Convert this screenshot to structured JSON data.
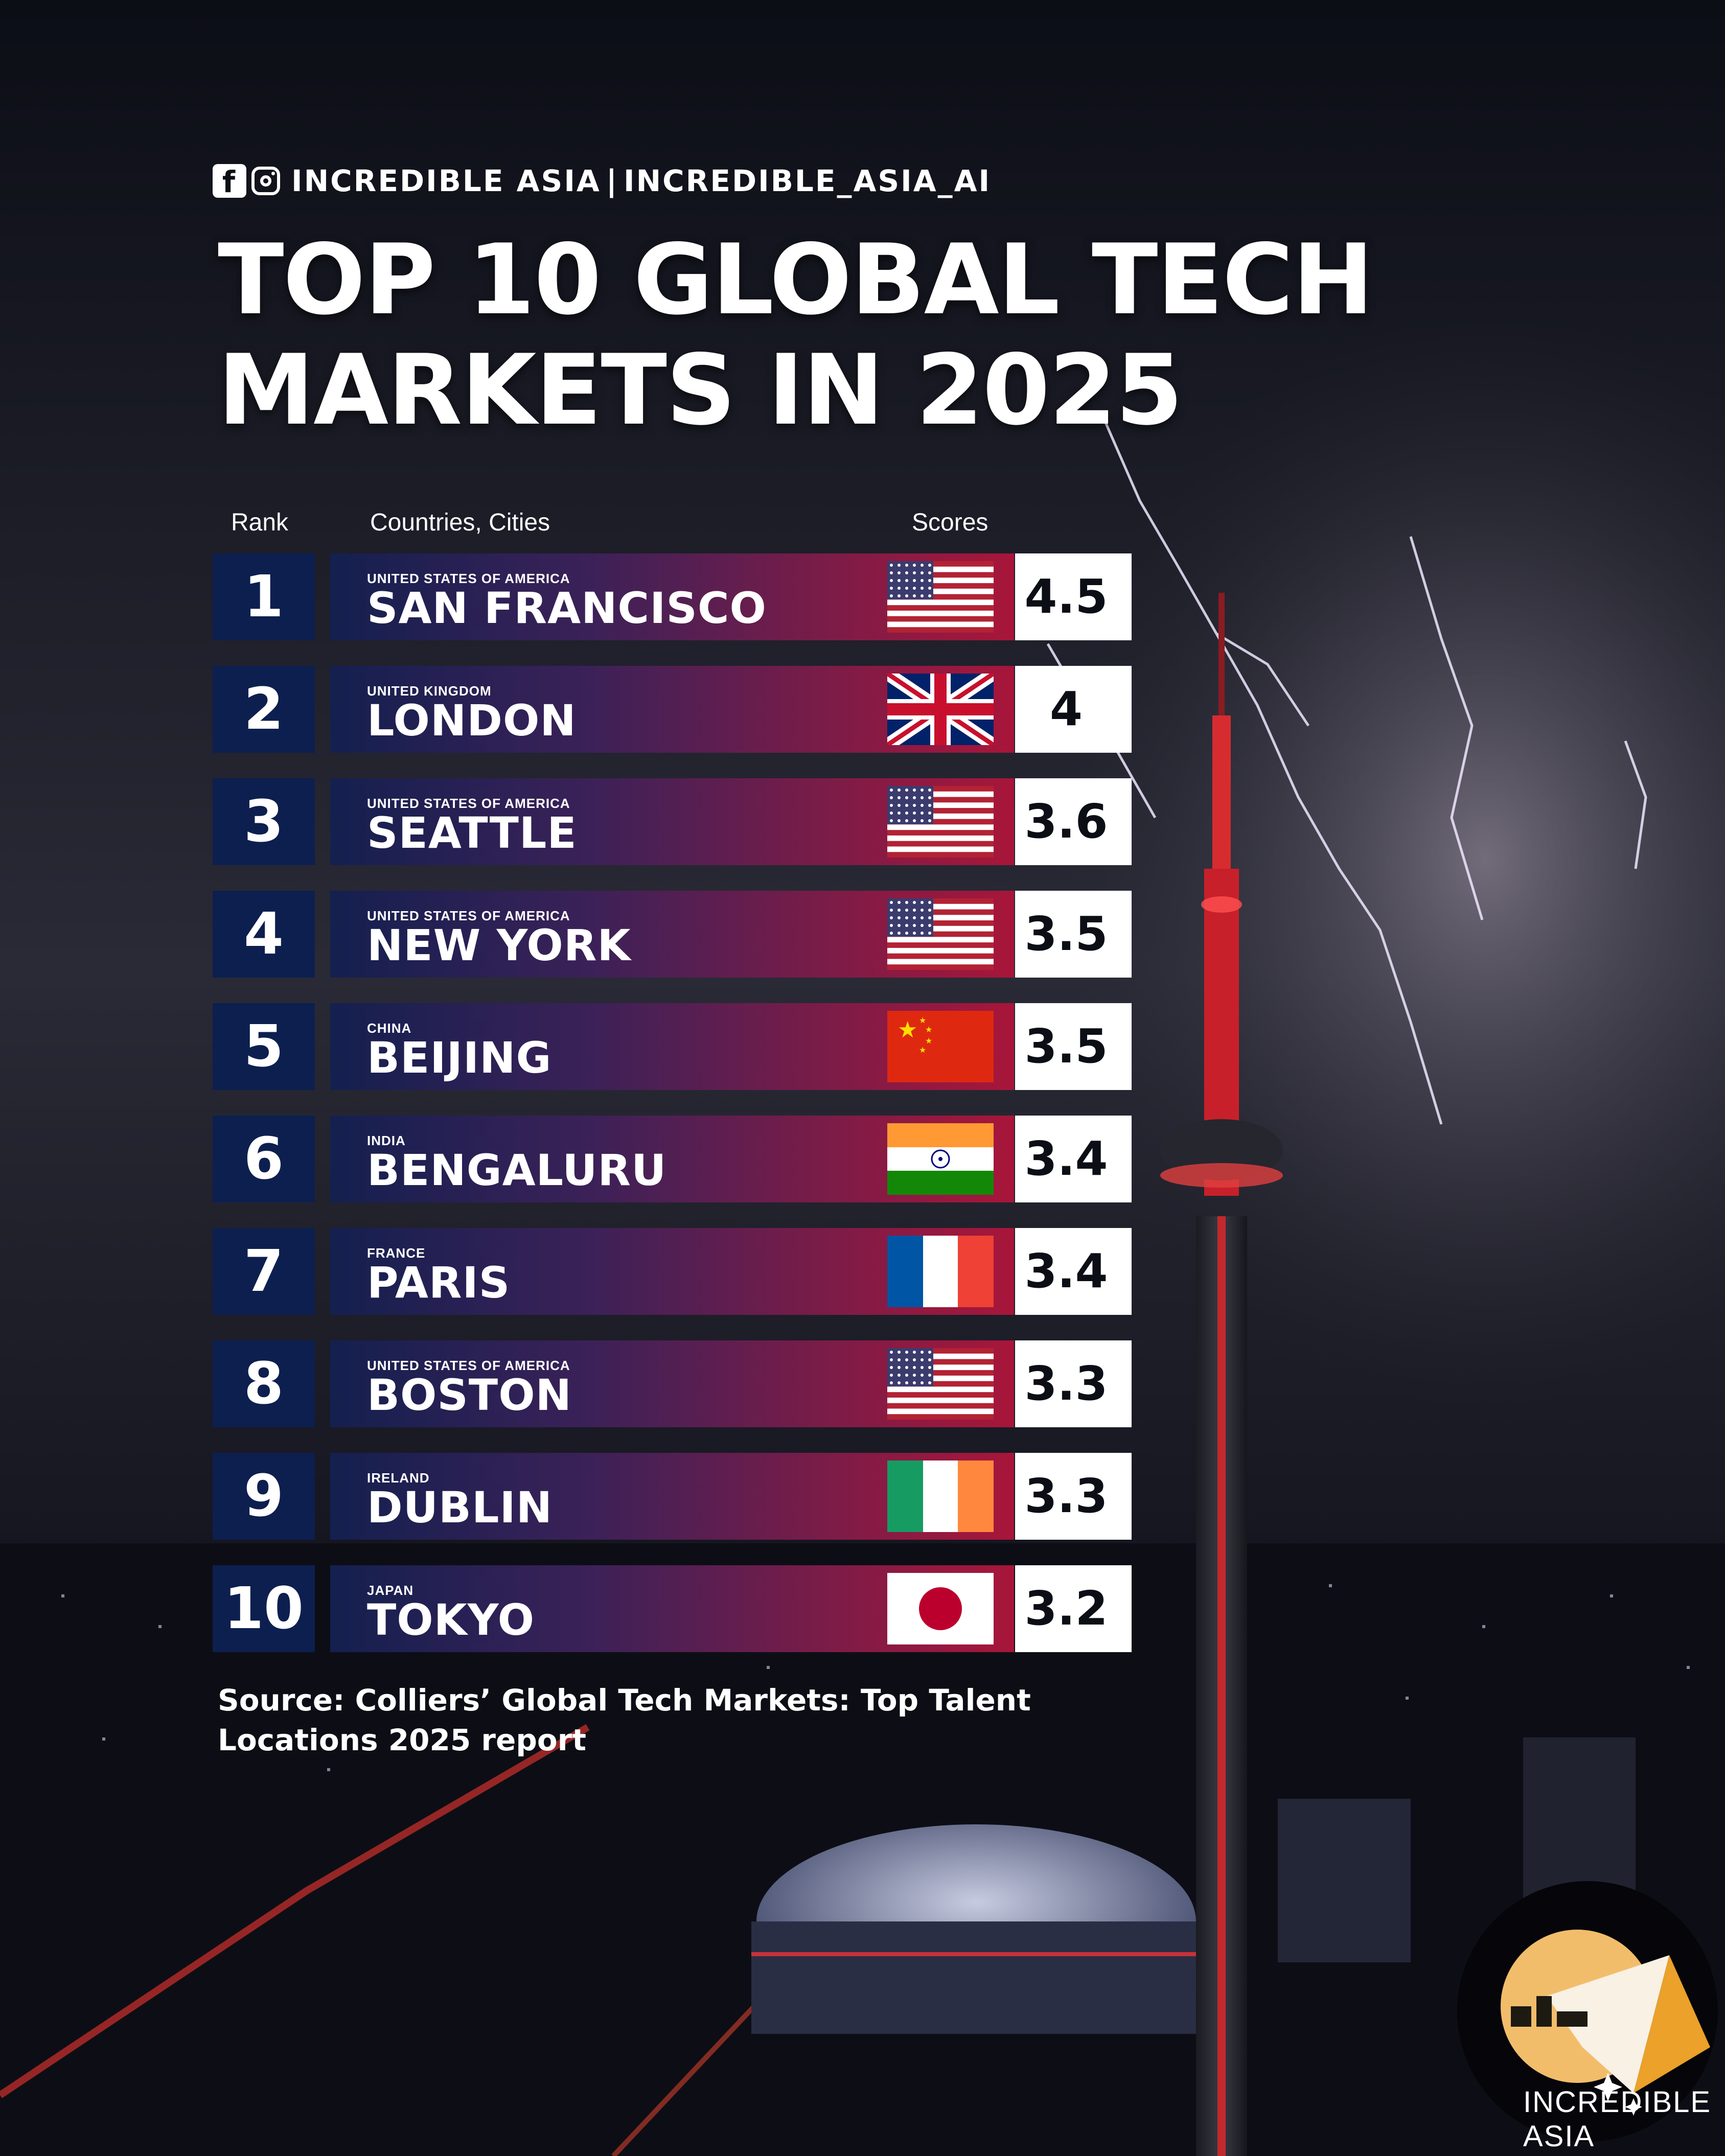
{
  "brand": {
    "name": "INCREDIBLE ASIA",
    "separator": "|",
    "handle": "INCREDIBLE_ASIA_AI",
    "icons": [
      "facebook-icon",
      "instagram-icon"
    ]
  },
  "colors": {
    "rank_bg": "#0c1f4f",
    "bar_start": "#14204f",
    "bar_end": "#a8163a",
    "score_bg": "#ffffff",
    "background": "#0c0e16"
  },
  "chart_data": {
    "type": "table",
    "title": [
      "TOP 10 GLOBAL TECH",
      "MARKETS IN 2025"
    ],
    "columns": [
      "Rank",
      "Countries, Cities",
      "Scores"
    ],
    "rows": [
      {
        "rank": "1",
        "country": "UNITED STATES OF AMERICA",
        "city": "SAN FRANCISCO",
        "score": 4.5,
        "flag": "us"
      },
      {
        "rank": "2",
        "country": "UNITED KINGDOM",
        "city": "LONDON",
        "score": 4,
        "flag": "uk"
      },
      {
        "rank": "3",
        "country": "UNITED STATES OF AMERICA",
        "city": "SEATTLE",
        "score": 3.6,
        "flag": "us"
      },
      {
        "rank": "4",
        "country": "UNITED STATES OF AMERICA",
        "city": "NEW YORK",
        "score": 3.5,
        "flag": "us"
      },
      {
        "rank": "5",
        "country": "CHINA",
        "city": "BEIJING",
        "score": 3.5,
        "flag": "cn"
      },
      {
        "rank": "6",
        "country": "INDIA",
        "city": "BENGALURU",
        "score": 3.4,
        "flag": "in"
      },
      {
        "rank": "7",
        "country": "FRANCE",
        "city": "PARIS",
        "score": 3.4,
        "flag": "fr"
      },
      {
        "rank": "8",
        "country": "UNITED STATES OF AMERICA",
        "city": "BOSTON",
        "score": 3.3,
        "flag": "us"
      },
      {
        "rank": "9",
        "country": "IRELAND",
        "city": "DUBLIN",
        "score": 3.3,
        "flag": "ie"
      },
      {
        "rank": "10",
        "country": "JAPAN",
        "city": "TOKYO",
        "score": 3.2,
        "flag": "jp"
      }
    ]
  },
  "source": {
    "line1": "Source: Colliers’ Global Tech Markets: Top Talent",
    "line2": "Locations 2025 report"
  },
  "logo": {
    "text": "INCREDIBLE ASIA"
  }
}
